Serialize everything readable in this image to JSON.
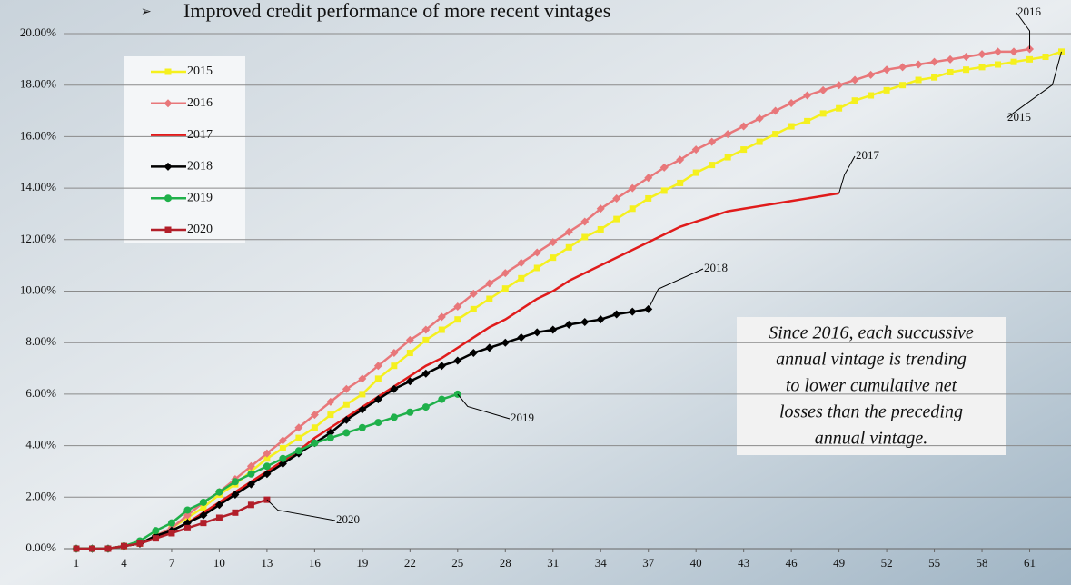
{
  "chart_data": {
    "type": "line",
    "title": "Improved credit performance of more recent vintages",
    "x": [
      1,
      2,
      3,
      4,
      5,
      6,
      7,
      8,
      9,
      10,
      11,
      12,
      13,
      14,
      15,
      16,
      17,
      18,
      19,
      20,
      21,
      22,
      23,
      24,
      25,
      26,
      27,
      28,
      29,
      30,
      31,
      32,
      33,
      34,
      35,
      36,
      37,
      38,
      39,
      40,
      41,
      42,
      43,
      44,
      45,
      46,
      47,
      48,
      49,
      50,
      51,
      52,
      53,
      54,
      55,
      56,
      57,
      58,
      59,
      60,
      61,
      62,
      63
    ],
    "xlim": [
      0.2,
      63.6
    ],
    "xticks": [
      1,
      4,
      7,
      10,
      13,
      16,
      19,
      22,
      25,
      28,
      31,
      34,
      37,
      40,
      43,
      46,
      49,
      52,
      55,
      58,
      61
    ],
    "ylim": [
      0,
      20
    ],
    "yticks": [
      {
        "value": 0,
        "label": "0.00%"
      },
      {
        "value": 2,
        "label": "2.00%"
      },
      {
        "value": 4,
        "label": "4.00%"
      },
      {
        "value": 6,
        "label": "6.00%"
      },
      {
        "value": 8,
        "label": "8.00%"
      },
      {
        "value": 10,
        "label": "10.00%"
      },
      {
        "value": 12,
        "label": "12.00%"
      },
      {
        "value": 14,
        "label": "14.00%"
      },
      {
        "value": 16,
        "label": "16.00%"
      },
      {
        "value": 18,
        "label": "18.00%"
      },
      {
        "value": 20,
        "label": "20.00%"
      }
    ],
    "grid": true,
    "legend": "upper left",
    "series": [
      {
        "name": "2015",
        "color": "#f5f01e",
        "marker": "square",
        "values": [
          0,
          0,
          0,
          0.1,
          0.2,
          0.5,
          0.8,
          1.2,
          1.6,
          2.1,
          2.5,
          3.0,
          3.5,
          3.9,
          4.3,
          4.7,
          5.2,
          5.6,
          6.0,
          6.6,
          7.1,
          7.6,
          8.1,
          8.5,
          8.9,
          9.3,
          9.7,
          10.1,
          10.5,
          10.9,
          11.3,
          11.7,
          12.1,
          12.4,
          12.8,
          13.2,
          13.6,
          13.9,
          14.2,
          14.6,
          14.9,
          15.2,
          15.5,
          15.8,
          16.1,
          16.4,
          16.6,
          16.9,
          17.1,
          17.4,
          17.6,
          17.8,
          18.0,
          18.2,
          18.3,
          18.5,
          18.6,
          18.7,
          18.8,
          18.9,
          19.0,
          19.1,
          19.3
        ]
      },
      {
        "name": "2016",
        "color": "#e8777a",
        "marker": "diamond",
        "values": [
          0,
          0,
          0,
          0.1,
          0.2,
          0.5,
          0.8,
          1.3,
          1.8,
          2.2,
          2.7,
          3.2,
          3.7,
          4.2,
          4.7,
          5.2,
          5.7,
          6.2,
          6.6,
          7.1,
          7.6,
          8.1,
          8.5,
          9.0,
          9.4,
          9.9,
          10.3,
          10.7,
          11.1,
          11.5,
          11.9,
          12.3,
          12.7,
          13.2,
          13.6,
          14.0,
          14.4,
          14.8,
          15.1,
          15.5,
          15.8,
          16.1,
          16.4,
          16.7,
          17.0,
          17.3,
          17.6,
          17.8,
          18.0,
          18.2,
          18.4,
          18.6,
          18.7,
          18.8,
          18.9,
          19.0,
          19.1,
          19.2,
          19.3,
          19.3,
          19.4,
          null,
          null
        ]
      },
      {
        "name": "2017",
        "color": "#e01b1b",
        "marker": "none",
        "values": [
          0,
          0,
          0,
          0.1,
          0.2,
          0.4,
          0.7,
          1.0,
          1.4,
          1.8,
          2.2,
          2.6,
          3.0,
          3.4,
          3.8,
          4.3,
          4.7,
          5.1,
          5.5,
          5.9,
          6.3,
          6.7,
          7.1,
          7.4,
          7.8,
          8.2,
          8.6,
          8.9,
          9.3,
          9.7,
          10.0,
          10.4,
          10.7,
          11.0,
          11.3,
          11.6,
          11.9,
          12.2,
          12.5,
          12.7,
          12.9,
          13.1,
          13.2,
          13.3,
          13.4,
          13.5,
          13.6,
          13.7,
          13.8,
          null,
          null,
          null,
          null,
          null,
          null,
          null,
          null,
          null,
          null,
          null,
          null,
          null,
          null
        ]
      },
      {
        "name": "2018",
        "color": "#000000",
        "marker": "diamond",
        "values": [
          0,
          0,
          0,
          0.1,
          0.2,
          0.5,
          0.7,
          1.0,
          1.3,
          1.7,
          2.1,
          2.5,
          2.9,
          3.3,
          3.7,
          4.1,
          4.5,
          5.0,
          5.4,
          5.8,
          6.2,
          6.5,
          6.8,
          7.1,
          7.3,
          7.6,
          7.8,
          8.0,
          8.2,
          8.4,
          8.5,
          8.7,
          8.8,
          8.9,
          9.1,
          9.2,
          9.3,
          null,
          null,
          null,
          null,
          null,
          null,
          null,
          null,
          null,
          null,
          null,
          null,
          null,
          null,
          null,
          null,
          null,
          null,
          null,
          null,
          null,
          null,
          null,
          null,
          null,
          null
        ]
      },
      {
        "name": "2019",
        "color": "#1fb04a",
        "marker": "circle",
        "values": [
          0,
          0,
          0,
          0.1,
          0.3,
          0.7,
          1.0,
          1.5,
          1.8,
          2.2,
          2.6,
          2.9,
          3.2,
          3.5,
          3.8,
          4.1,
          4.3,
          4.5,
          4.7,
          4.9,
          5.1,
          5.3,
          5.5,
          5.8,
          6.0,
          null,
          null,
          null,
          null,
          null,
          null,
          null,
          null,
          null,
          null,
          null,
          null,
          null,
          null,
          null,
          null,
          null,
          null,
          null,
          null,
          null,
          null,
          null,
          null,
          null,
          null,
          null,
          null,
          null,
          null,
          null,
          null,
          null,
          null,
          null,
          null,
          null,
          null
        ]
      },
      {
        "name": "2020",
        "color": "#b21f2a",
        "marker": "square",
        "values": [
          0,
          0,
          0,
          0.1,
          0.2,
          0.4,
          0.6,
          0.8,
          1.0,
          1.2,
          1.4,
          1.7,
          1.9,
          null,
          null,
          null,
          null,
          null,
          null,
          null,
          null,
          null,
          null,
          null,
          null,
          null,
          null,
          null,
          null,
          null,
          null,
          null,
          null,
          null,
          null,
          null,
          null,
          null,
          null,
          null,
          null,
          null,
          null,
          null,
          null,
          null,
          null,
          null,
          null,
          null,
          null,
          null,
          null,
          null,
          null,
          null,
          null,
          null,
          null,
          null,
          null,
          null,
          null
        ]
      }
    ],
    "annotation": [
      "Since 2016, each succussive",
      "annual vintage is trending",
      "to lower cumulative net",
      "losses than the preceding",
      "annual vintage."
    ]
  }
}
